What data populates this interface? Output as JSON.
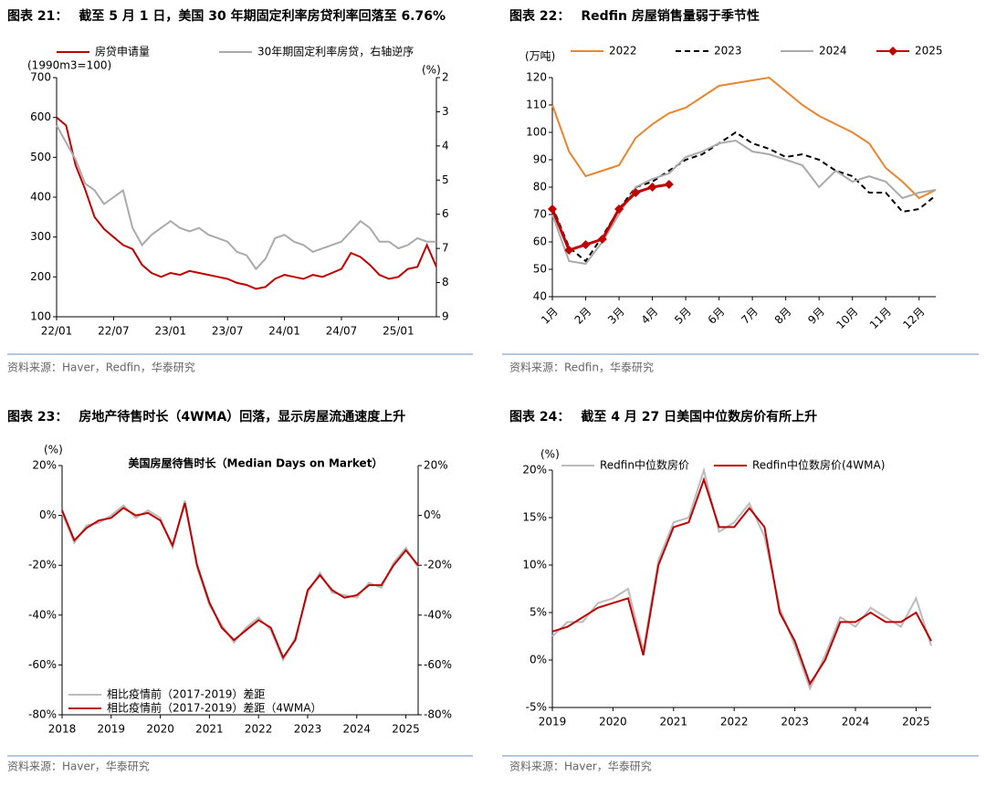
{
  "chart_data": [
    {
      "type": "line",
      "label": "图表 21：",
      "title": "截至 5 月 1 日，美国 30 年期固定利率房贷利率回落至 6.76%",
      "source": "资料来源：Haver，Redfin，华泰研究",
      "y_unit": "(1990m3=100)",
      "y2_unit": "(%)",
      "legend": "top",
      "categories": [
        "22/01",
        null,
        null,
        null,
        null,
        null,
        "22/07",
        null,
        null,
        null,
        null,
        null,
        "23/01",
        null,
        null,
        null,
        null,
        null,
        "23/07",
        null,
        null,
        null,
        null,
        null,
        "24/01",
        null,
        null,
        null,
        null,
        null,
        "24/07",
        null,
        null,
        null,
        null,
        null,
        "25/01",
        null,
        null,
        null,
        null
      ],
      "ylim": [
        100,
        700
      ],
      "yticks": [
        100,
        200,
        300,
        400,
        500,
        600,
        700
      ],
      "y2lim": [
        2,
        9
      ],
      "y2ticks": [
        2,
        3,
        4,
        5,
        6,
        7,
        8,
        9
      ],
      "y2_reversed": true,
      "series": [
        {
          "name": "房贷申请量",
          "color": "#c00000",
          "values": [
            600,
            580,
            480,
            420,
            350,
            320,
            300,
            280,
            270,
            230,
            210,
            200,
            210,
            205,
            215,
            210,
            205,
            200,
            195,
            185,
            180,
            170,
            175,
            195,
            205,
            200,
            195,
            205,
            200,
            210,
            220,
            260,
            250,
            230,
            205,
            195,
            200,
            220,
            225,
            280,
            225
          ]
        },
        {
          "name": "30年期固定利率房贷，右轴逆序",
          "color": "#aaaaaa",
          "axis": "y2",
          "values": [
            3.4,
            3.9,
            4.4,
            5.1,
            5.3,
            5.7,
            5.5,
            5.3,
            6.4,
            6.9,
            6.6,
            6.4,
            6.2,
            6.4,
            6.5,
            6.4,
            6.6,
            6.7,
            6.8,
            7.1,
            7.2,
            7.6,
            7.3,
            6.7,
            6.6,
            6.8,
            6.9,
            7.1,
            7.0,
            6.9,
            6.8,
            6.5,
            6.2,
            6.4,
            6.8,
            6.8,
            7.0,
            6.9,
            6.7,
            6.8,
            6.8
          ]
        }
      ]
    },
    {
      "type": "line",
      "label": "图表 22：",
      "title": "Redfin 房屋销售量弱于季节性",
      "source": "资料来源：Redfin，华泰研究",
      "y_unit": "(万吨)",
      "legend": "top",
      "categories": [
        "1月",
        null,
        "2月",
        null,
        "3月",
        null,
        "4月",
        null,
        "5月",
        null,
        "6月",
        null,
        "7月",
        null,
        "8月",
        null,
        "9月",
        null,
        "10月",
        null,
        "11月",
        null,
        "12月",
        null
      ],
      "ylim": [
        40,
        120
      ],
      "yticks": [
        40,
        50,
        60,
        70,
        80,
        90,
        100,
        110,
        120
      ],
      "series": [
        {
          "name": "2022",
          "color": "#e8852e",
          "values": [
            110,
            93,
            84,
            86,
            88,
            98,
            103,
            107,
            109,
            113,
            117,
            118,
            119,
            120,
            115,
            110,
            106,
            103,
            100,
            96,
            87,
            82,
            76,
            79
          ]
        },
        {
          "name": "2023",
          "color": "#000000",
          "dash": true,
          "values": [
            73,
            58,
            53,
            62,
            72,
            80,
            82,
            86,
            90,
            92,
            96,
            100,
            96,
            94,
            91,
            92,
            90,
            86,
            84,
            78,
            78,
            71,
            72,
            77
          ]
        },
        {
          "name": "2024",
          "color": "#aaaaaa",
          "values": [
            70,
            53,
            52,
            60,
            70,
            80,
            83,
            85,
            91,
            93,
            96,
            97,
            93,
            92,
            90,
            88,
            80,
            86,
            82,
            84,
            82,
            76,
            78,
            79
          ]
        },
        {
          "name": "2025",
          "color": "#c00000",
          "marker": "diamond",
          "values": [
            72,
            57,
            59,
            61,
            72,
            78,
            80,
            81,
            null,
            null,
            null,
            null,
            null,
            null,
            null,
            null,
            null,
            null,
            null,
            null,
            null,
            null,
            null,
            null
          ]
        }
      ]
    },
    {
      "type": "line",
      "label": "图表 23：",
      "title": "房地产待售时长（4WMA）回落，显示房屋流通速度上升",
      "subtitle": "美国房屋待售时长（Median Days on Market）",
      "source": "资料来源：Haver，华泰研究",
      "y_unit": "(%)",
      "legend": "lower left",
      "categories": [
        "2018",
        null,
        null,
        null,
        "2019",
        null,
        null,
        null,
        "2020",
        null,
        null,
        null,
        "2021",
        null,
        null,
        null,
        "2022",
        null,
        null,
        null,
        "2023",
        null,
        null,
        null,
        "2024",
        null,
        null,
        null,
        "2025",
        null
      ],
      "ylim": [
        -80,
        20
      ],
      "yticks": [
        {
          "value": -80,
          "label": "-80%"
        },
        {
          "value": -60,
          "label": "-60%"
        },
        {
          "value": -40,
          "label": "-40%"
        },
        {
          "value": -20,
          "label": "-20%"
        },
        {
          "value": 0,
          "label": "0%"
        },
        {
          "value": 20,
          "label": "20%"
        }
      ],
      "y2lim": [
        -80,
        20
      ],
      "y2ticks": [
        {
          "value": -80,
          "label": "-80%"
        },
        {
          "value": -60,
          "label": "-60%"
        },
        {
          "value": -40,
          "label": "-40%"
        },
        {
          "value": -20,
          "label": "-20%"
        },
        {
          "value": 0,
          "label": "0%"
        },
        {
          "value": 20,
          "label": "20%"
        }
      ],
      "series": [
        {
          "name": "相比疫情前（2017-2019）差距",
          "color": "#bbbbbb",
          "values": [
            1,
            -11,
            -4,
            -3,
            0,
            4,
            -1,
            2,
            -1,
            -13,
            6,
            -21,
            -36,
            -44,
            -51,
            -45,
            -41,
            -46,
            -58,
            -49,
            -31,
            -23,
            -31,
            -32,
            -33,
            -27,
            -29,
            -19,
            -13,
            -21
          ]
        },
        {
          "name": "相比疫情前（2017-2019）差距（4WMA）",
          "color": "#c00000",
          "values": [
            2,
            -10,
            -5,
            -2,
            -1,
            3,
            0,
            1,
            -2,
            -12,
            5,
            -20,
            -35,
            -45,
            -50,
            -46,
            -42,
            -45,
            -57,
            -50,
            -30,
            -24,
            -30,
            -33,
            -32,
            -28,
            -28,
            -20,
            -14,
            -20
          ]
        }
      ]
    },
    {
      "type": "line",
      "label": "图表 24：",
      "title": "截至 4 月 27 日美国中位数房价有所上升",
      "source": "资料来源：Haver，华泰研究",
      "y_unit": "(%)",
      "legend": "top",
      "categories": [
        "2019",
        null,
        null,
        null,
        "2020",
        null,
        null,
        null,
        "2021",
        null,
        null,
        null,
        "2022",
        null,
        null,
        null,
        "2023",
        null,
        null,
        null,
        "2024",
        null,
        null,
        null,
        "2025",
        null
      ],
      "ylim": [
        -5,
        20
      ],
      "yticks": [
        {
          "value": -5,
          "label": "-5%"
        },
        {
          "value": 0,
          "label": "0%"
        },
        {
          "value": 5,
          "label": "5%"
        },
        {
          "value": 10,
          "label": "10%"
        },
        {
          "value": 15,
          "label": "15%"
        },
        {
          "value": 20,
          "label": "20%"
        }
      ],
      "series": [
        {
          "name": "Redfin中位数房价",
          "color": "#bbbbbb",
          "values": [
            2.5,
            4,
            4,
            6,
            6.5,
            7.5,
            1,
            10.5,
            14.5,
            15,
            20,
            13.5,
            14.5,
            16.5,
            13,
            5.5,
            1.5,
            -3,
            0.5,
            4.5,
            3.5,
            5.5,
            4.5,
            3.5,
            6.5,
            1.5
          ]
        },
        {
          "name": "Redfin中位数房价(4WMA)",
          "color": "#c00000",
          "values": [
            3,
            3.5,
            4.5,
            5.5,
            6,
            6.5,
            0.5,
            10,
            14,
            14.5,
            19,
            14,
            14,
            16,
            14,
            5,
            2,
            -2.5,
            0,
            4,
            4,
            5,
            4,
            4,
            5,
            2
          ]
        }
      ]
    }
  ]
}
